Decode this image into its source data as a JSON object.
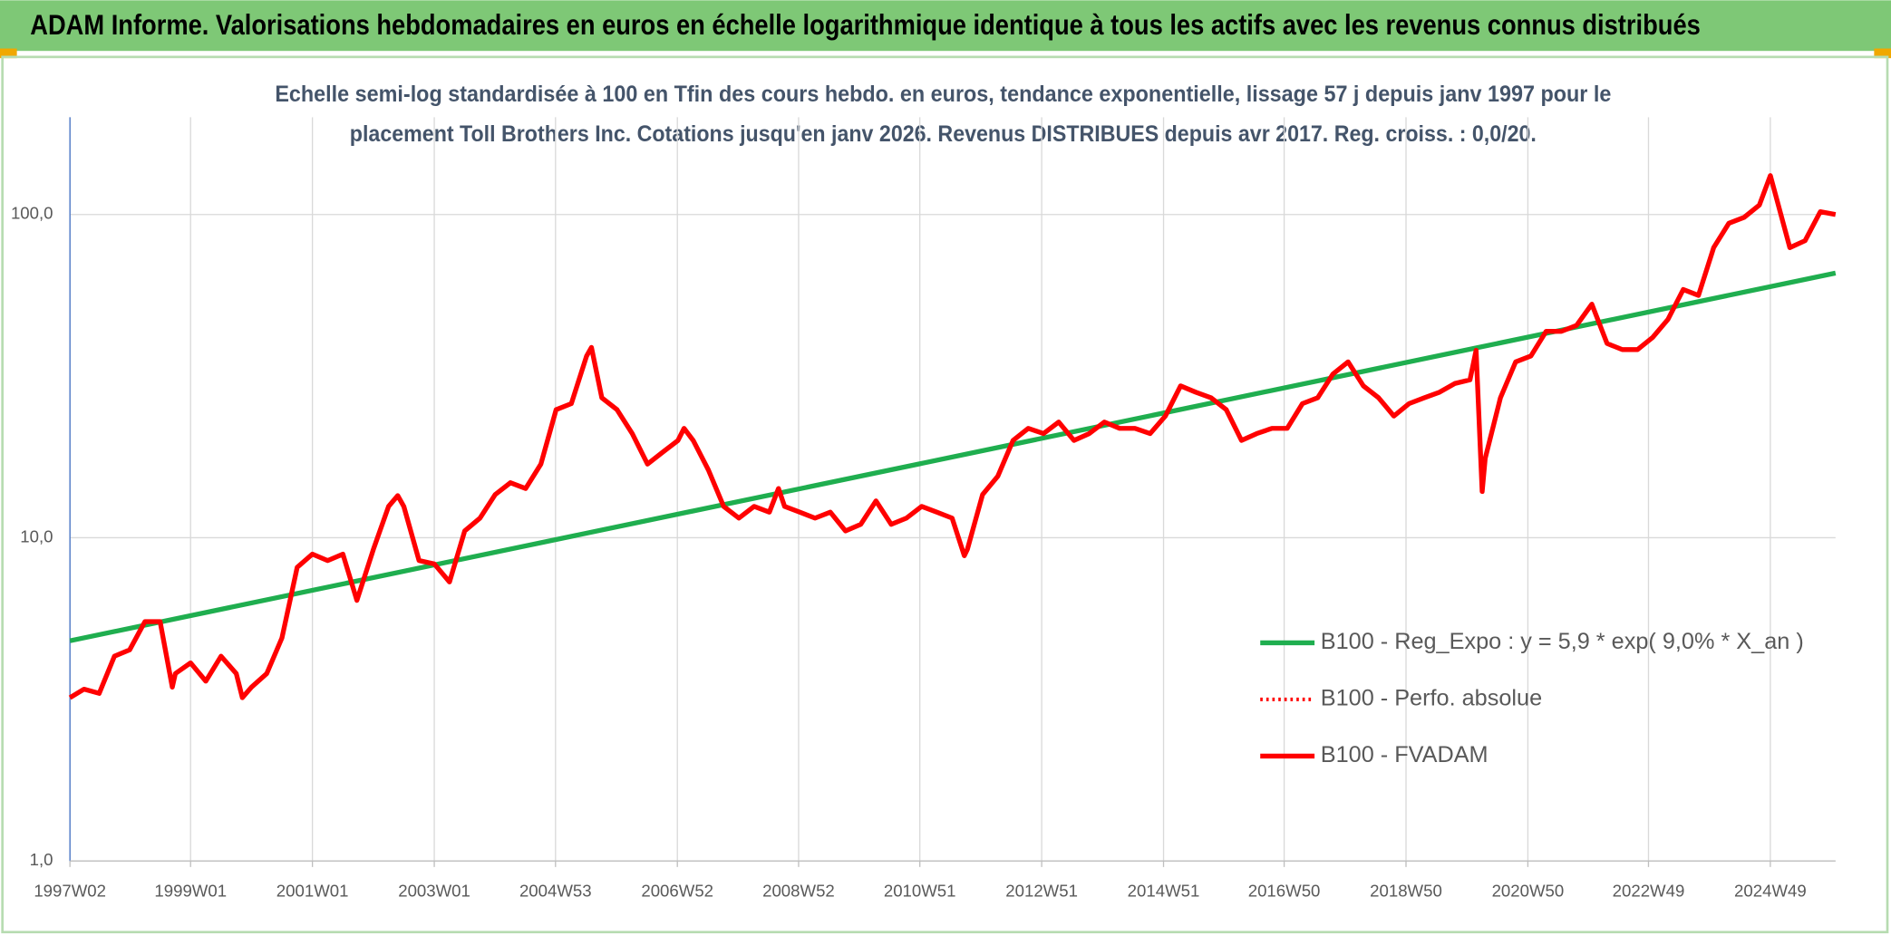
{
  "chart_data": {
    "type": "line",
    "title": "ADAM Informe. Valorisations hebdomadaires en euros en échelle logarithmique identique à tous les actifs avec les revenus connus distribués",
    "subtitle": [
      "Echelle semi-log standardisée à 100 en Tfin des cours hebdo. en euros, tendance exponentielle, lissage 57 j depuis janv 1997 pour le",
      "placement Toll Brothers Inc. Cotations jusqu'en janv 2026. Revenus DISTRIBUES depuis avr 2017. Reg. croiss. : 0,0/20."
    ],
    "log_scale": true,
    "grid": true,
    "legend": "right",
    "xlim": [
      1997.02,
      2026.0
    ],
    "xticks": [
      {
        "value": 1997.02,
        "label": "1997W02"
      },
      {
        "value": 1999.0,
        "label": "1999W01"
      },
      {
        "value": 2001.0,
        "label": "2001W01"
      },
      {
        "value": 2003.0,
        "label": "2003W01"
      },
      {
        "value": 2004.99,
        "label": "2004W53"
      },
      {
        "value": 2006.99,
        "label": "2006W52"
      },
      {
        "value": 2008.98,
        "label": "2008W52"
      },
      {
        "value": 2010.97,
        "label": "2010W51"
      },
      {
        "value": 2012.97,
        "label": "2012W51"
      },
      {
        "value": 2014.97,
        "label": "2014W51"
      },
      {
        "value": 2016.95,
        "label": "2016W50"
      },
      {
        "value": 2018.95,
        "label": "2018W50"
      },
      {
        "value": 2020.95,
        "label": "2020W50"
      },
      {
        "value": 2022.93,
        "label": "2022W49"
      },
      {
        "value": 2024.93,
        "label": "2024W49"
      }
    ],
    "ylim": [
      1,
      200
    ],
    "yticks": [
      {
        "value": 1,
        "label": "1,0"
      },
      {
        "value": 10,
        "label": "10,0"
      },
      {
        "value": 100,
        "label": "100,0"
      }
    ],
    "series": [
      {
        "name": "B100 - Reg_Expo : y = 5,9 * exp( 9,0% *  X_an )",
        "color": "#1fae4f",
        "dash": "solid",
        "x": [
          1997.02,
          2026.0
        ],
        "values": [
          4.8,
          65.9
        ]
      },
      {
        "name": "B100 - Perfo. absolue",
        "color": "#ff0000",
        "dash": "dotted",
        "x": [],
        "values": []
      },
      {
        "name": "B100 - FVADAM",
        "color": "#ff0000",
        "dash": "solid",
        "x": [
          1997.02,
          1997.25,
          1997.5,
          1997.75,
          1998.0,
          1998.25,
          1998.5,
          1998.7,
          1998.75,
          1999.0,
          1999.25,
          1999.5,
          1999.75,
          1999.85,
          2000.0,
          2000.25,
          2000.5,
          2000.75,
          2001.0,
          2001.25,
          2001.5,
          2001.73,
          2002.0,
          2002.25,
          2002.4,
          2002.5,
          2002.75,
          2003.0,
          2003.25,
          2003.5,
          2003.75,
          2004.0,
          2004.25,
          2004.5,
          2004.75,
          2005.0,
          2005.25,
          2005.5,
          2005.58,
          2005.75,
          2006.0,
          2006.25,
          2006.5,
          2006.75,
          2007.0,
          2007.1,
          2007.25,
          2007.5,
          2007.75,
          2008.0,
          2008.25,
          2008.5,
          2008.65,
          2008.75,
          2009.0,
          2009.25,
          2009.5,
          2009.75,
          2010.0,
          2010.25,
          2010.5,
          2010.75,
          2011.0,
          2011.25,
          2011.5,
          2011.7,
          2011.75,
          2012.0,
          2012.25,
          2012.5,
          2012.75,
          2013.0,
          2013.25,
          2013.5,
          2013.75,
          2014.0,
          2014.25,
          2014.5,
          2014.75,
          2015.0,
          2015.25,
          2015.5,
          2015.75,
          2016.0,
          2016.25,
          2016.5,
          2016.75,
          2017.0,
          2017.25,
          2017.5,
          2017.75,
          2018.0,
          2018.25,
          2018.5,
          2018.75,
          2019.0,
          2019.25,
          2019.5,
          2019.75,
          2020.0,
          2020.1,
          2020.2,
          2020.25,
          2020.5,
          2020.75,
          2021.0,
          2021.25,
          2021.5,
          2021.75,
          2022.0,
          2022.25,
          2022.5,
          2022.75,
          2023.0,
          2023.25,
          2023.5,
          2023.75,
          2024.0,
          2024.25,
          2024.5,
          2024.75,
          2024.93,
          2025.0,
          2025.25,
          2025.5,
          2025.75,
          2026.0
        ],
        "values": [
          3.2,
          3.4,
          3.3,
          4.3,
          4.5,
          5.5,
          5.5,
          3.45,
          3.8,
          4.1,
          3.6,
          4.3,
          3.8,
          3.2,
          3.45,
          3.8,
          4.9,
          8.1,
          8.9,
          8.5,
          8.9,
          6.4,
          9.2,
          12.5,
          13.5,
          12.5,
          8.5,
          8.3,
          7.3,
          10.5,
          11.5,
          13.6,
          14.8,
          14.2,
          16.9,
          24.9,
          26,
          36.5,
          38.8,
          27.1,
          24.9,
          21,
          16.9,
          18.4,
          20,
          21.8,
          20,
          16.2,
          12.5,
          11.5,
          12.5,
          12,
          14.2,
          12.5,
          12,
          11.5,
          12,
          10.5,
          11,
          13,
          11,
          11.5,
          12.5,
          12,
          11.5,
          8.8,
          9.2,
          13.6,
          15.5,
          20,
          21.8,
          21,
          22.8,
          20,
          21,
          22.8,
          21.8,
          21.8,
          21,
          23.8,
          29.5,
          28.2,
          27.1,
          24.9,
          20,
          21,
          21.8,
          21.8,
          26,
          27.1,
          32.1,
          35,
          29.5,
          27.1,
          23.8,
          26,
          27.1,
          28.2,
          30,
          30.8,
          38,
          13.9,
          17.6,
          27.1,
          35,
          36.5,
          43.5,
          43.5,
          45.4,
          52.8,
          39.9,
          38.2,
          38.2,
          41.7,
          47.4,
          58.6,
          56.2,
          79,
          94,
          98,
          107,
          132,
          118,
          79,
          83,
          102,
          100
        ]
      }
    ]
  }
}
